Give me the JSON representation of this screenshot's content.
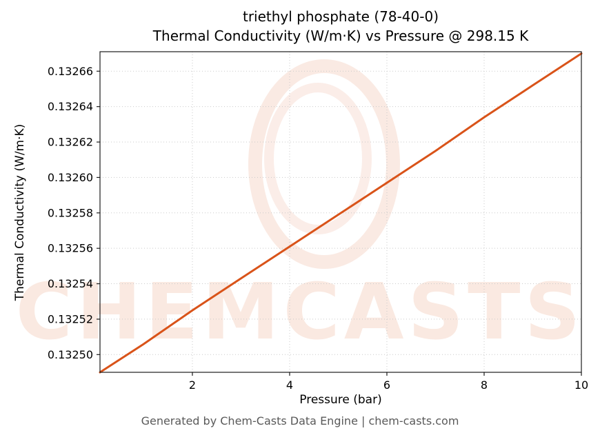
{
  "figure": {
    "title_line1": "triethyl phosphate (78-40-0)",
    "title_line2": "Thermal Conductivity (W/m·K) vs Pressure @ 298.15 K",
    "footer": "Generated by Chem-Casts Data Engine | chem-casts.com",
    "watermark_text": "CHEMCASTS",
    "watermark_color": "#d95319"
  },
  "chart_data": {
    "type": "line",
    "title": "triethyl phosphate (78-40-0) Thermal Conductivity (W/m·K) vs Pressure @ 298.15 K",
    "xlabel": "Pressure (bar)",
    "ylabel": "Thermal Conductivity (W/m·K)",
    "xlim": [
      0.1,
      10
    ],
    "ylim": [
      0.13249,
      0.132671
    ],
    "x_ticks": [
      2,
      4,
      6,
      8,
      10
    ],
    "y_ticks": [
      0.1325,
      0.13252,
      0.13254,
      0.13256,
      0.13258,
      0.1326,
      0.13262,
      0.13264,
      0.13266
    ],
    "y_tick_decimals": 5,
    "grid": true,
    "legend": "none",
    "line_color": "#d95319",
    "series": [
      {
        "name": "thermal_conductivity",
        "x": [
          0.1,
          1,
          2,
          3,
          4,
          5,
          6,
          7,
          8,
          9,
          10
        ],
        "y": [
          0.13249,
          0.132506,
          0.132525,
          0.132543,
          0.132561,
          0.132579,
          0.132597,
          0.132615,
          0.132634,
          0.132652,
          0.13267
        ]
      }
    ]
  }
}
